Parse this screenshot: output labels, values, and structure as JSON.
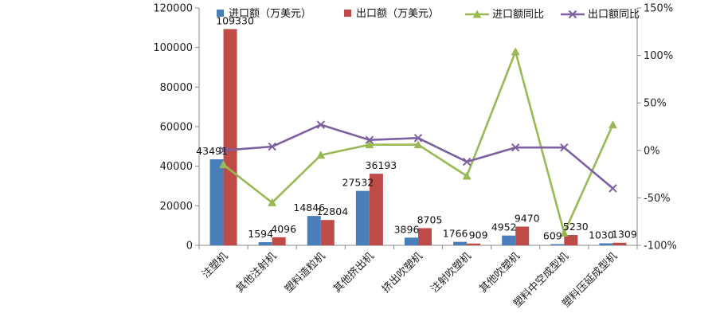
{
  "chart_data": {
    "type": "bar",
    "categories": [
      "注塑机",
      "其他注射机",
      "塑料造粒机",
      "其他挤出机",
      "挤出吹塑机",
      "注射吹塑机",
      "其他吹塑机",
      "塑料中空成型机",
      "塑料压延成型机"
    ],
    "series": [
      {
        "name": "进口额（万美元）",
        "type": "bar",
        "axis": "left",
        "color": "#4a7ebb",
        "values": [
          43491,
          1594,
          14846,
          27532,
          3896,
          1766,
          4952,
          609,
          1030
        ]
      },
      {
        "name": "出口额（万美元）",
        "type": "bar",
        "axis": "left",
        "color": "#be4b48",
        "values": [
          109330,
          4096,
          12804,
          36193,
          8705,
          909,
          9470,
          5230,
          1309
        ]
      },
      {
        "name": "进口额同比",
        "type": "line",
        "axis": "right",
        "color": "#98b954",
        "marker": "triangle",
        "values": [
          -15,
          -55,
          -5,
          6,
          6,
          -27,
          104,
          -87,
          27
        ]
      },
      {
        "name": "出口额同比",
        "type": "line",
        "axis": "right",
        "color": "#7d60a0",
        "marker": "x",
        "values": [
          0,
          4,
          27,
          11,
          13,
          -12,
          3,
          3,
          -40
        ]
      }
    ],
    "data_labels": [
      [
        "43491",
        "1594",
        "14846",
        "27532",
        "3896",
        "1766",
        "4952",
        "609",
        "1030"
      ],
      [
        "109330",
        "4096",
        "12804",
        "36193",
        "8705",
        "909",
        "9470",
        "5230",
        "1309"
      ]
    ],
    "y_left": {
      "min": 0,
      "max": 120000,
      "ticks": [
        "0",
        "20000",
        "40000",
        "60000",
        "80000",
        "100000",
        "120000"
      ]
    },
    "y_right": {
      "min": -100,
      "max": 150,
      "ticks": [
        "-100%",
        "-50%",
        "0%",
        "50%",
        "100%",
        "150%"
      ]
    },
    "grid": false,
    "legend": "top"
  }
}
